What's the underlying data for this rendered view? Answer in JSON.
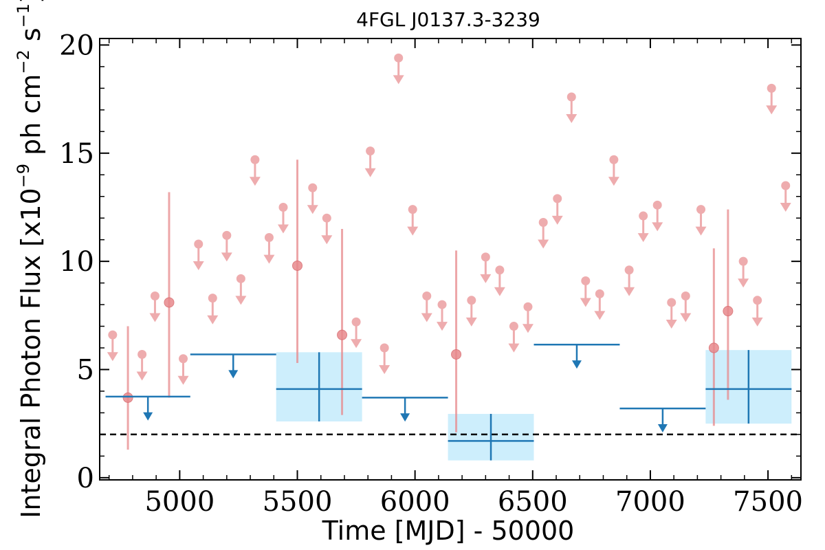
{
  "chart_data": {
    "type": "scatter",
    "title": "4FGL J0137.3-3239",
    "xlabel": "Time [MJD] - 50000",
    "ylabel_main": "Integral Photon Flux [x10",
    "ylabel_exp": "−9",
    "ylabel_mid": " ph cm",
    "ylabel_exp2": "−2",
    "ylabel_end": " s",
    "ylabel_exp3": "−1",
    "ylabel_close": "]",
    "xlim": [
      4660,
      7640
    ],
    "ylim": [
      -0.1,
      20.3
    ],
    "x_ticks": [
      5000,
      5500,
      6000,
      6500,
      7000,
      7500
    ],
    "y_ticks": [
      0,
      5,
      10,
      15,
      20
    ],
    "reference_line": {
      "y": 2.0,
      "style": "dashed",
      "color": "#000000"
    },
    "colors": {
      "short_bin": "#e8898c",
      "long_bin": "#1f77b4",
      "long_bin_box": "#cdeefc"
    },
    "short_bin_detections": [
      {
        "x": 4780,
        "y": 3.7,
        "err_low": 1.3,
        "err_high": 7.0
      },
      {
        "x": 4955,
        "y": 8.1,
        "err_low": 3.7,
        "err_high": 13.2
      },
      {
        "x": 5500,
        "y": 9.8,
        "err_low": 5.3,
        "err_high": 14.7
      },
      {
        "x": 5690,
        "y": 6.6,
        "err_low": 2.9,
        "err_high": 11.5
      },
      {
        "x": 6175,
        "y": 5.7,
        "err_low": 2.1,
        "err_high": 10.5
      },
      {
        "x": 7270,
        "y": 6.0,
        "err_low": 2.4,
        "err_high": 10.6
      },
      {
        "x": 7330,
        "y": 7.7,
        "err_low": 3.6,
        "err_high": 12.4
      }
    ],
    "short_bin_upper_limits": [
      {
        "x": 4715,
        "y": 6.6
      },
      {
        "x": 4840,
        "y": 5.7
      },
      {
        "x": 4895,
        "y": 8.4
      },
      {
        "x": 5015,
        "y": 5.5
      },
      {
        "x": 5080,
        "y": 10.8
      },
      {
        "x": 5140,
        "y": 8.3
      },
      {
        "x": 5200,
        "y": 11.2
      },
      {
        "x": 5260,
        "y": 9.2
      },
      {
        "x": 5320,
        "y": 14.7
      },
      {
        "x": 5380,
        "y": 11.1
      },
      {
        "x": 5440,
        "y": 12.5
      },
      {
        "x": 5565,
        "y": 13.4
      },
      {
        "x": 5625,
        "y": 12.0
      },
      {
        "x": 5750,
        "y": 7.2
      },
      {
        "x": 5810,
        "y": 15.1
      },
      {
        "x": 5870,
        "y": 6.0
      },
      {
        "x": 5930,
        "y": 19.4
      },
      {
        "x": 5990,
        "y": 12.4
      },
      {
        "x": 6050,
        "y": 8.4
      },
      {
        "x": 6115,
        "y": 8.0
      },
      {
        "x": 6240,
        "y": 8.2
      },
      {
        "x": 6300,
        "y": 10.2
      },
      {
        "x": 6360,
        "y": 9.6
      },
      {
        "x": 6420,
        "y": 7.0
      },
      {
        "x": 6480,
        "y": 7.9
      },
      {
        "x": 6545,
        "y": 11.8
      },
      {
        "x": 6605,
        "y": 12.9
      },
      {
        "x": 6665,
        "y": 17.6
      },
      {
        "x": 6725,
        "y": 9.1
      },
      {
        "x": 6785,
        "y": 8.5
      },
      {
        "x": 6845,
        "y": 14.7
      },
      {
        "x": 6910,
        "y": 9.6
      },
      {
        "x": 6970,
        "y": 12.1
      },
      {
        "x": 7030,
        "y": 12.6
      },
      {
        "x": 7090,
        "y": 8.1
      },
      {
        "x": 7150,
        "y": 8.4
      },
      {
        "x": 7215,
        "y": 12.4
      },
      {
        "x": 7395,
        "y": 10.0
      },
      {
        "x": 7455,
        "y": 8.2
      },
      {
        "x": 7515,
        "y": 18.0
      },
      {
        "x": 7575,
        "y": 13.5
      }
    ],
    "long_bin_detections": [
      {
        "x_start": 5410,
        "x_end": 5775,
        "y": 4.1,
        "err_low": 2.6,
        "err_high": 5.8
      },
      {
        "x_start": 6140,
        "x_end": 6505,
        "y": 1.7,
        "err_low": 0.8,
        "err_high": 2.95
      },
      {
        "x_start": 7235,
        "x_end": 7600,
        "y": 4.1,
        "err_low": 2.5,
        "err_high": 5.9
      }
    ],
    "long_bin_upper_limits": [
      {
        "x_start": 4685,
        "x_end": 5045,
        "y": 3.75
      },
      {
        "x_start": 5045,
        "x_end": 5410,
        "y": 5.7
      },
      {
        "x_start": 5775,
        "x_end": 6140,
        "y": 3.7
      },
      {
        "x_start": 6505,
        "x_end": 6870,
        "y": 6.15
      },
      {
        "x_start": 6870,
        "x_end": 7235,
        "y": 3.2
      }
    ],
    "grid": false,
    "legend": "none"
  }
}
